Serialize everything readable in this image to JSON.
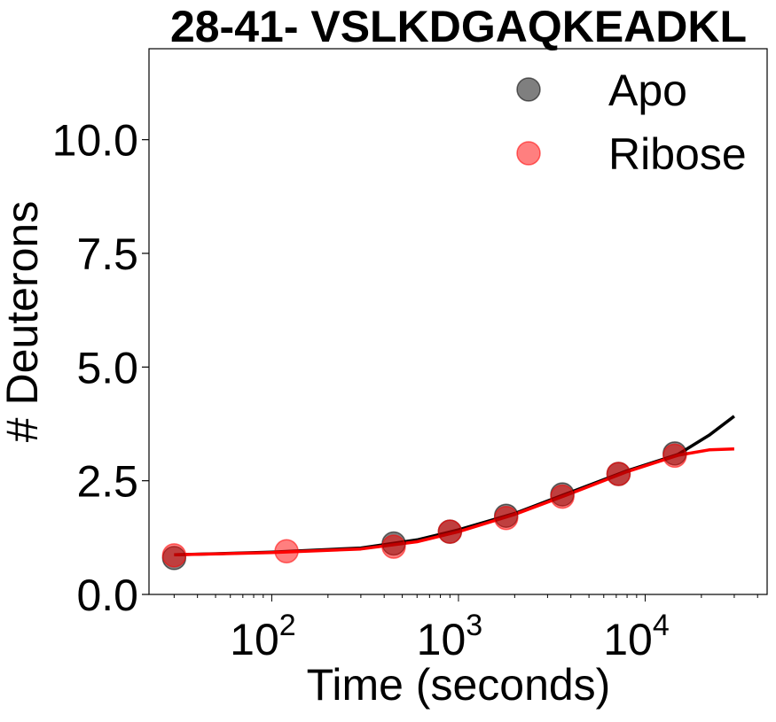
{
  "chart_data": {
    "type": "scatter",
    "title": "28-41- VSLKDGAQKEADKL",
    "xlabel": "Time (seconds)",
    "ylabel": "# Deuterons",
    "xscale": "log",
    "xlim": [
      22,
      45000
    ],
    "ylim": [
      0,
      12.0
    ],
    "xticks": [
      {
        "value": 100,
        "base": "10",
        "exp": "2"
      },
      {
        "value": 1000,
        "base": "10",
        "exp": "3"
      },
      {
        "value": 10000,
        "base": "10",
        "exp": "4"
      }
    ],
    "yticks": [
      {
        "value": 0,
        "label": "0.0"
      },
      {
        "value": 2.5,
        "label": "2.5"
      },
      {
        "value": 5,
        "label": "5.0"
      },
      {
        "value": 7.5,
        "label": "7.5"
      },
      {
        "value": 10,
        "label": "10.0"
      }
    ],
    "legend_placement": "upper-right",
    "series": [
      {
        "name": "Apo",
        "marker_color": "#000000",
        "line_color": "#000000",
        "points": [
          {
            "x": 30,
            "y": 0.8
          },
          {
            "x": 450,
            "y": 1.12
          },
          {
            "x": 900,
            "y": 1.38
          },
          {
            "x": 1800,
            "y": 1.73
          },
          {
            "x": 3600,
            "y": 2.2
          },
          {
            "x": 7200,
            "y": 2.65
          },
          {
            "x": 14400,
            "y": 3.1
          }
        ],
        "fit": [
          {
            "x": 30,
            "y": 0.87
          },
          {
            "x": 100,
            "y": 0.93
          },
          {
            "x": 300,
            "y": 1.02
          },
          {
            "x": 600,
            "y": 1.2
          },
          {
            "x": 1000,
            "y": 1.42
          },
          {
            "x": 2000,
            "y": 1.78
          },
          {
            "x": 4000,
            "y": 2.25
          },
          {
            "x": 8000,
            "y": 2.72
          },
          {
            "x": 15000,
            "y": 3.08
          },
          {
            "x": 22000,
            "y": 3.5
          },
          {
            "x": 30000,
            "y": 3.92
          }
        ]
      },
      {
        "name": "Ribose",
        "marker_color": "#ff0000",
        "line_color": "#ff0000",
        "points": [
          {
            "x": 30,
            "y": 0.86
          },
          {
            "x": 120,
            "y": 0.95
          },
          {
            "x": 450,
            "y": 1.05
          },
          {
            "x": 900,
            "y": 1.38
          },
          {
            "x": 1800,
            "y": 1.68
          },
          {
            "x": 3600,
            "y": 2.15
          },
          {
            "x": 7200,
            "y": 2.65
          },
          {
            "x": 14400,
            "y": 3.05
          }
        ],
        "fit": [
          {
            "x": 30,
            "y": 0.87
          },
          {
            "x": 100,
            "y": 0.92
          },
          {
            "x": 300,
            "y": 1.0
          },
          {
            "x": 600,
            "y": 1.16
          },
          {
            "x": 1000,
            "y": 1.38
          },
          {
            "x": 2000,
            "y": 1.76
          },
          {
            "x": 4000,
            "y": 2.22
          },
          {
            "x": 8000,
            "y": 2.7
          },
          {
            "x": 15000,
            "y": 3.06
          },
          {
            "x": 22000,
            "y": 3.18
          },
          {
            "x": 30000,
            "y": 3.2
          }
        ]
      }
    ]
  }
}
